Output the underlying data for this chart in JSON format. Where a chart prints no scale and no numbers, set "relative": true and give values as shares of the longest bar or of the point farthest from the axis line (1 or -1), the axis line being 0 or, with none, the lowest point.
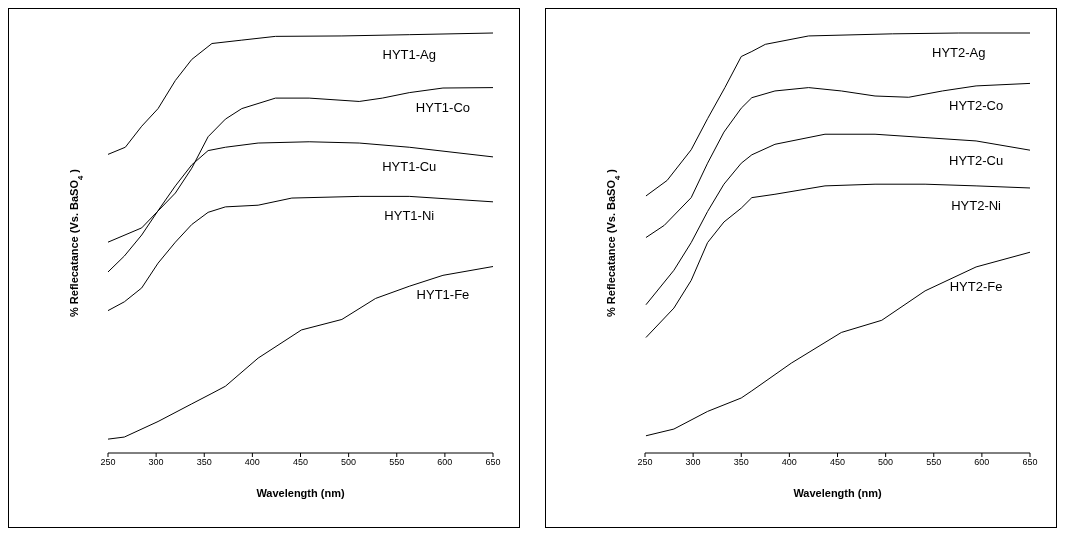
{
  "chart_data": [
    {
      "type": "line",
      "relative": true,
      "xlabel": "Wavelength (nm)",
      "ylabel": "% Reflecatance (Vs. BaSO$_{4}$)",
      "xlim": [
        250,
        650
      ],
      "xticks": [
        250,
        300,
        350,
        400,
        450,
        500,
        550,
        600,
        650
      ],
      "marker": "none",
      "line_style": "solid",
      "series": [
        {
          "name": "HYT1-Ag",
          "color": "#000000",
          "x": [
            250,
            268,
            285,
            302,
            320,
            337,
            358,
            389,
            424,
            493,
            563,
            650
          ],
          "values": [
            0.711,
            0.728,
            0.778,
            0.82,
            0.887,
            0.937,
            0.975,
            0.983,
            0.992,
            0.993,
            0.996,
            1
          ]
        },
        {
          "name": "HYT1-Co",
          "color": "#000000",
          "x": [
            250,
            285,
            320,
            337,
            354,
            372,
            389,
            424,
            459,
            511,
            535,
            563,
            598,
            650
          ],
          "values": [
            0.502,
            0.536,
            0.619,
            0.678,
            0.753,
            0.795,
            0.82,
            0.845,
            0.845,
            0.837,
            0.845,
            0.858,
            0.869,
            0.87
          ]
        },
        {
          "name": "HYT1-Cu",
          "color": "#000000",
          "x": [
            250,
            267,
            285,
            302,
            320,
            337,
            354,
            372,
            406,
            459,
            511,
            563,
            650
          ],
          "values": [
            0.431,
            0.469,
            0.519,
            0.577,
            0.636,
            0.686,
            0.72,
            0.728,
            0.738,
            0.741,
            0.738,
            0.728,
            0.705
          ]
        },
        {
          "name": "HYT1-Ni",
          "color": "#000000",
          "x": [
            250,
            267,
            285,
            302,
            320,
            337,
            354,
            372,
            406,
            441,
            511,
            563,
            650
          ],
          "values": [
            0.339,
            0.36,
            0.393,
            0.452,
            0.502,
            0.544,
            0.573,
            0.586,
            0.59,
            0.607,
            0.611,
            0.611,
            0.598
          ]
        },
        {
          "name": "HYT1-Fe",
          "color": "#000000",
          "x": [
            250,
            267,
            302,
            337,
            358,
            372,
            406,
            451,
            493,
            528,
            563,
            598,
            650
          ],
          "values": [
            0.033,
            0.038,
            0.075,
            0.117,
            0.142,
            0.159,
            0.226,
            0.293,
            0.318,
            0.368,
            0.397,
            0.423,
            0.444
          ]
        }
      ]
    },
    {
      "type": "line",
      "relative": true,
      "xlabel": "Wavelength (nm)",
      "ylabel": "% Reflecatance (Vs. BaSO$_{4}$)",
      "xlim": [
        250,
        650
      ],
      "xticks": [
        250,
        300,
        350,
        400,
        450,
        500,
        550,
        600,
        650
      ],
      "marker": "none",
      "line_style": "solid",
      "series": [
        {
          "name": "HYT2-Ag",
          "color": "#000000",
          "x": [
            251,
            273,
            298,
            315,
            333,
            350,
            361,
            375,
            420,
            507,
            576,
            650
          ],
          "values": [
            0.612,
            0.649,
            0.722,
            0.796,
            0.87,
            0.944,
            0.956,
            0.973,
            0.993,
            0.998,
            1,
            1
          ]
        },
        {
          "name": "HYT2-Co",
          "color": "#000000",
          "x": [
            251,
            270,
            298,
            315,
            332,
            350,
            361,
            385,
            420,
            454,
            489,
            524,
            559,
            594,
            650
          ],
          "values": [
            0.513,
            0.542,
            0.608,
            0.69,
            0.764,
            0.821,
            0.846,
            0.862,
            0.87,
            0.862,
            0.85,
            0.847,
            0.862,
            0.874,
            0.88
          ]
        },
        {
          "name": "HYT2-Cu",
          "color": "#000000",
          "x": [
            251,
            280,
            298,
            315,
            332,
            350,
            361,
            385,
            437,
            489,
            541,
            594,
            650
          ],
          "values": [
            0.353,
            0.435,
            0.501,
            0.575,
            0.64,
            0.69,
            0.71,
            0.735,
            0.759,
            0.759,
            0.751,
            0.743,
            0.721
          ]
        },
        {
          "name": "HYT2-Ni",
          "color": "#000000",
          "x": [
            251,
            280,
            298,
            315,
            332,
            350,
            361,
            385,
            437,
            489,
            541,
            594,
            650
          ],
          "values": [
            0.275,
            0.345,
            0.411,
            0.501,
            0.55,
            0.583,
            0.608,
            0.616,
            0.636,
            0.64,
            0.64,
            0.636,
            0.631
          ]
        },
        {
          "name": "HYT2-Fe",
          "color": "#000000",
          "x": [
            251,
            280,
            315,
            350,
            361,
            402,
            454,
            496,
            541,
            594,
            650
          ],
          "values": [
            0.041,
            0.057,
            0.099,
            0.131,
            0.148,
            0.214,
            0.287,
            0.316,
            0.386,
            0.443,
            0.478
          ]
        }
      ]
    }
  ]
}
